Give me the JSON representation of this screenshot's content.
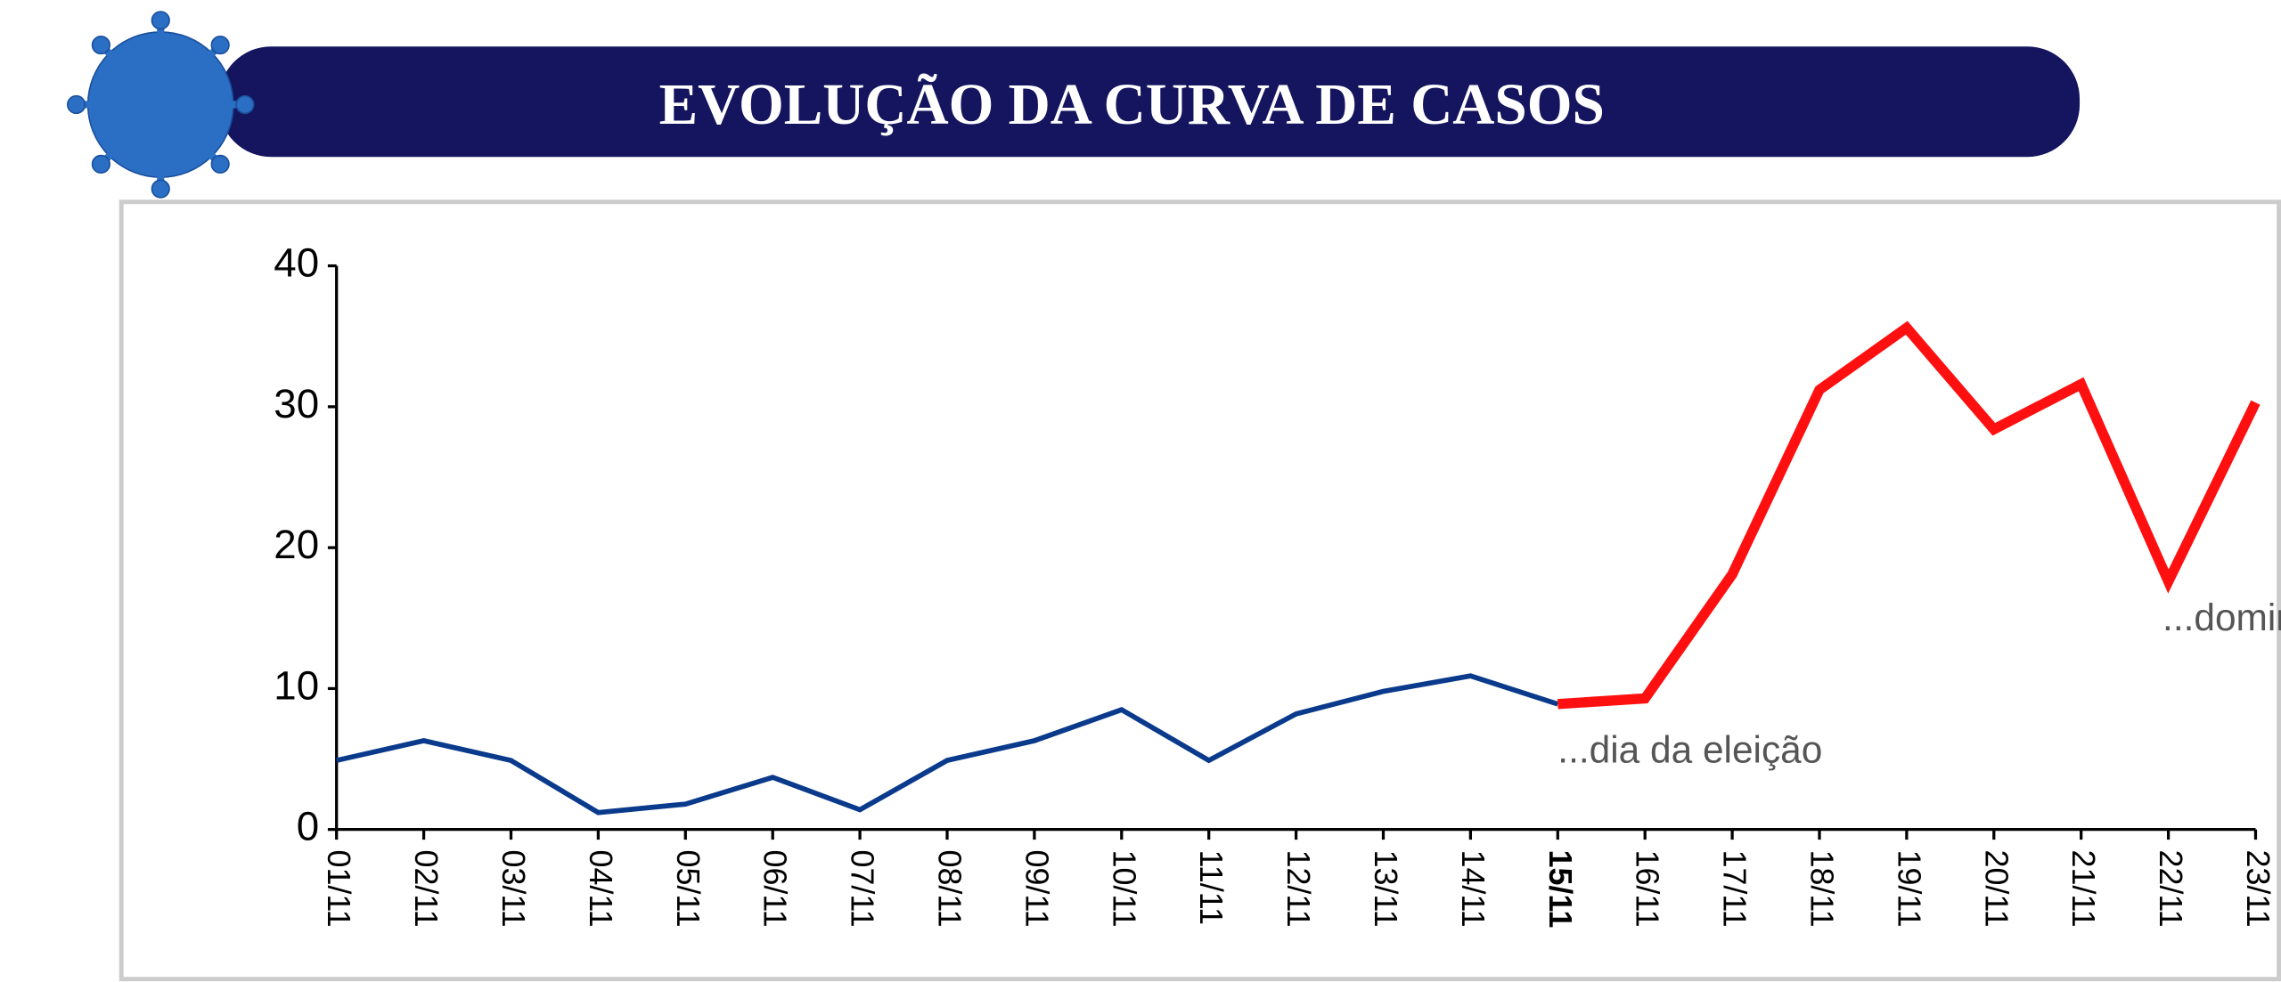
{
  "chart_data": {
    "type": "line",
    "title": "EVOLUÇÃO DA CURVA DE CASOS",
    "categories": [
      "01/11",
      "02/11",
      "03/11",
      "04/11",
      "05/11",
      "06/11",
      "07/11",
      "08/11",
      "09/11",
      "10/11",
      "11/11",
      "12/11",
      "13/11",
      "14/11",
      "15/11",
      "16/11",
      "17/11",
      "18/11",
      "19/11",
      "20/11",
      "21/11",
      "22/11",
      "23/11"
    ],
    "series": [
      {
        "color": "#0a3a8c",
        "values": [
          4.9,
          6.3,
          4.9,
          1.2,
          1.8,
          3.7,
          1.4,
          4.9,
          6.3,
          8.5,
          4.9,
          8.2,
          9.8,
          10.9,
          8.9,
          null,
          null,
          null,
          null,
          null,
          null,
          null,
          null
        ]
      },
      {
        "color": "#ff1010",
        "values": [
          null,
          null,
          null,
          null,
          null,
          null,
          null,
          null,
          null,
          null,
          null,
          null,
          null,
          null,
          8.9,
          9.3,
          18.1,
          31.2,
          35.6,
          28.4,
          31.6,
          17.6,
          30.3
        ]
      }
    ],
    "highlight_category": 14,
    "highlight_color": "#e01010",
    "annotations": [
      "...dia da eleição",
      "...domingo"
    ],
    "annotation_categories": [
      14,
      21
    ],
    "ylim": [
      0,
      40
    ],
    "yticks": [
      0,
      10,
      20,
      30,
      40
    ]
  }
}
